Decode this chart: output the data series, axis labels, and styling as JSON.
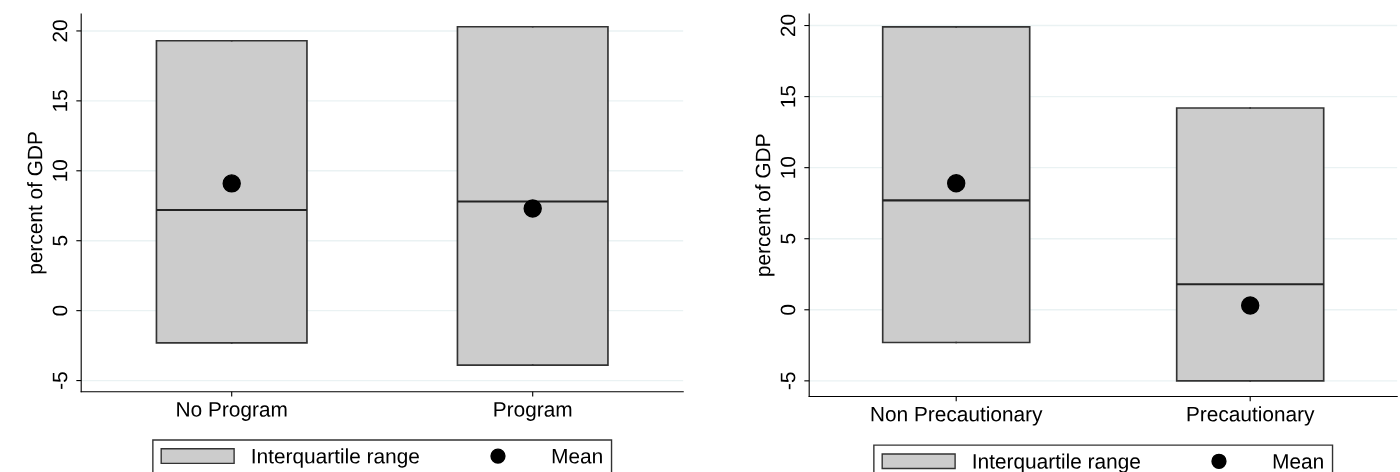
{
  "chart_data": [
    {
      "type": "box",
      "ylabel": "percent of GDP",
      "categories": [
        "No Program",
        "Program"
      ],
      "ylim": [
        -5.8,
        21.2
      ],
      "yticks": [
        -5,
        0,
        5,
        10,
        15,
        20
      ],
      "grid": "y",
      "legend": "bottom",
      "series": [
        {
          "name": "Interquartile range",
          "color": "#cccccc",
          "boxes": [
            {
              "low": -2.3,
              "q1": -2.3,
              "median": 7.2,
              "q3": 19.3,
              "high": 19.3
            },
            {
              "low": -3.9,
              "q1": -3.9,
              "median": 7.8,
              "q3": 20.3,
              "high": 20.3
            }
          ]
        },
        {
          "name": "Mean",
          "type": "scatter",
          "color": "#000000",
          "marker": "circle",
          "x": [
            "No Program",
            "Program"
          ],
          "values": [
            9.1,
            7.3
          ]
        }
      ]
    },
    {
      "type": "box",
      "ylabel": "percent of GDP",
      "categories": [
        "Non Precautionary",
        "Precautionary"
      ],
      "ylim": [
        -6.1,
        20.8
      ],
      "yticks": [
        -5,
        0,
        5,
        10,
        15,
        20
      ],
      "grid": "y",
      "legend": "bottom",
      "series": [
        {
          "name": "Interquartile range",
          "color": "#cccccc",
          "boxes": [
            {
              "low": -2.3,
              "q1": -2.3,
              "median": 7.7,
              "q3": 19.9,
              "high": 19.9
            },
            {
              "low": -5.0,
              "q1": -5.0,
              "median": 1.8,
              "q3": 14.2,
              "high": 14.2
            }
          ]
        },
        {
          "name": "Mean",
          "type": "scatter",
          "color": "#000000",
          "marker": "circle",
          "x": [
            "Non Precautionary",
            "Precautionary"
          ],
          "values": [
            8.9,
            0.3
          ]
        }
      ]
    }
  ]
}
